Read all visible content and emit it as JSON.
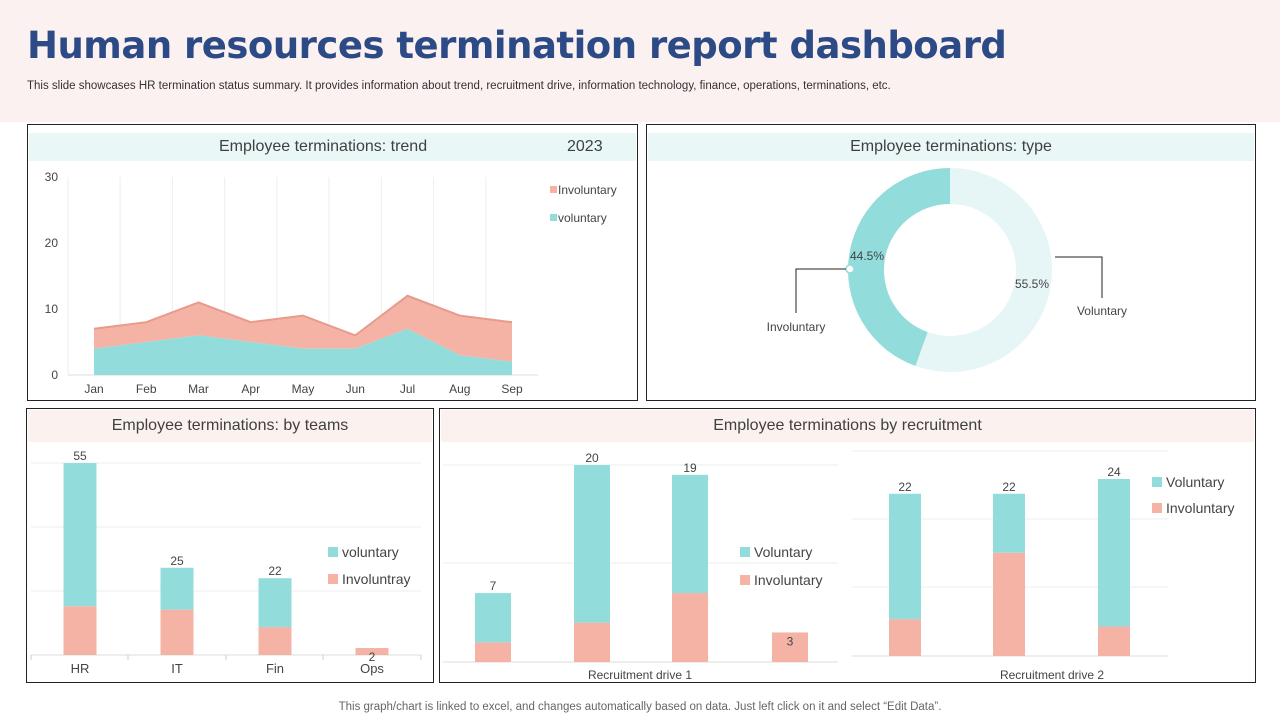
{
  "header": {
    "title": "Human resources termination report dashboard",
    "subtitle": "This slide showcases HR termination status summary. It provides information about trend, recruitment drive, information technology, finance, operations, terminations, etc."
  },
  "footer": "This graph/chart is linked to excel,  and changes automatically based on data. Just left click on it and select “Edit Data”.",
  "colors": {
    "voluntary": "#93dcdc",
    "involuntary": "#f5b3a6",
    "involuntary_line": "#e89a8c",
    "voluntary_light": "#e6f6f6",
    "title": "#2c4a86"
  },
  "chart_data": [
    {
      "type": "area",
      "stacked": true,
      "title": "Employee terminations: trend",
      "year": "2023",
      "categories": [
        "Jan",
        "Feb",
        "Mar",
        "Apr",
        "May",
        "Jun",
        "Jul",
        "Aug",
        "Sep"
      ],
      "series": [
        {
          "name": "voluntary",
          "values": [
            4,
            5,
            6,
            5,
            4,
            4,
            7,
            3,
            2
          ]
        },
        {
          "name": "Involuntary",
          "values": [
            3,
            3,
            5,
            3,
            5,
            2,
            5,
            6,
            6
          ]
        }
      ],
      "legend": [
        "Involuntary",
        "voluntary"
      ],
      "ylim": [
        0,
        30
      ],
      "yticks": [
        "0",
        "10",
        "20",
        "30"
      ],
      "grid": true,
      "legend_position": "right"
    },
    {
      "type": "pie",
      "donut": true,
      "title": "Employee terminations: type",
      "slices": [
        {
          "name": "Voluntary",
          "value": 55.5,
          "label": "55.5%"
        },
        {
          "name": "Involuntary",
          "value": 44.5,
          "label": "44.5%"
        }
      ]
    },
    {
      "type": "bar",
      "stacked": true,
      "title": "Employee terminations: by teams",
      "categories": [
        "HR",
        "IT",
        "Fin",
        "Ops"
      ],
      "totals": [
        "55",
        "25",
        "22",
        "2"
      ],
      "series": [
        {
          "name": "Involuntray",
          "values": [
            14,
            13,
            8,
            2
          ]
        },
        {
          "name": "voluntary",
          "values": [
            41,
            12,
            14,
            0
          ]
        }
      ],
      "legend": [
        "voluntary",
        "Involuntray"
      ],
      "legend_position": "right"
    },
    {
      "type": "bar",
      "stacked": true,
      "title": "Employee terminations by recruitment",
      "group": "Recruitment drive 1",
      "totals": [
        "7",
        "20",
        "19",
        "3"
      ],
      "series": [
        {
          "name": "Involuntary",
          "values": [
            2,
            4,
            7,
            3
          ]
        },
        {
          "name": "Voluntary",
          "values": [
            5,
            16,
            12,
            0
          ]
        }
      ],
      "legend": [
        "Voluntary",
        "Involuntary"
      ]
    },
    {
      "type": "bar",
      "stacked": true,
      "group": "Recruitment drive 2",
      "totals": [
        "22",
        "22",
        "24"
      ],
      "series": [
        {
          "name": "Involuntary",
          "values": [
            5,
            14,
            4
          ]
        },
        {
          "name": "Voluntary",
          "values": [
            17,
            8,
            20
          ]
        }
      ],
      "legend": [
        "Voluntary",
        "Involuntary"
      ]
    }
  ]
}
